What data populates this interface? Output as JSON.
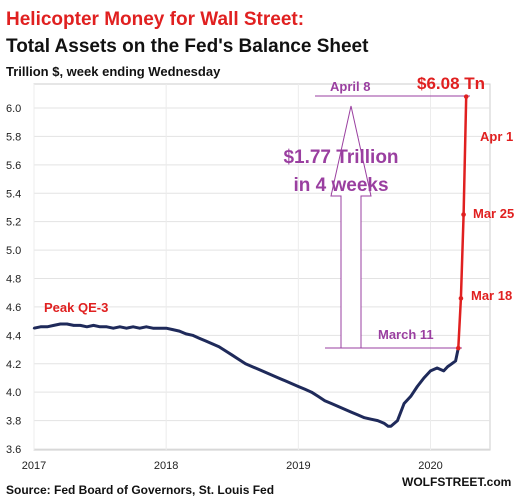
{
  "chart_data": {
    "type": "line",
    "title": "Helicopter Money for Wall Street:",
    "subtitle": "Total Assets on the Fed's Balance Sheet",
    "ylabel": "Trillion $, week ending Wednesday",
    "source": "Source: Fed Board of Governors, St. Louis Fed",
    "watermark": "WOLFSTREET.com",
    "x_ticks": [
      "2017",
      "2018",
      "2019",
      "2020"
    ],
    "y_ticks": [
      "3.6",
      "3.8",
      "4.0",
      "4.2",
      "4.4",
      "4.6",
      "4.8",
      "5.0",
      "5.2",
      "5.4",
      "5.6",
      "5.8",
      "6.0"
    ],
    "ylim": [
      3.6,
      6.0
    ],
    "xlim": [
      2017.0,
      2020.45
    ],
    "grid": true,
    "series": [
      {
        "color": "#1f2a5a",
        "x": [
          2017.0,
          2017.05,
          2017.1,
          2017.15,
          2017.2,
          2017.25,
          2017.3,
          2017.35,
          2017.4,
          2017.45,
          2017.5,
          2017.55,
          2017.6,
          2017.65,
          2017.7,
          2017.75,
          2017.8,
          2017.85,
          2017.9,
          2017.95,
          2018.0,
          2018.05,
          2018.1,
          2018.15,
          2018.2,
          2018.25,
          2018.3,
          2018.35,
          2018.4,
          2018.45,
          2018.5,
          2018.55,
          2018.6,
          2018.65,
          2018.7,
          2018.75,
          2018.8,
          2018.85,
          2018.9,
          2018.95,
          2019.0,
          2019.05,
          2019.1,
          2019.15,
          2019.2,
          2019.25,
          2019.3,
          2019.35,
          2019.4,
          2019.45,
          2019.5,
          2019.55,
          2019.6,
          2019.65,
          2019.68,
          2019.7,
          2019.75,
          2019.8,
          2019.85,
          2019.9,
          2019.95,
          2020.0,
          2020.05,
          2020.1,
          2020.13,
          2020.16,
          2020.19,
          2020.21
        ],
        "y": [
          4.45,
          4.46,
          4.46,
          4.47,
          4.48,
          4.48,
          4.47,
          4.47,
          4.46,
          4.47,
          4.46,
          4.46,
          4.45,
          4.46,
          4.45,
          4.46,
          4.45,
          4.46,
          4.45,
          4.45,
          4.45,
          4.44,
          4.43,
          4.41,
          4.4,
          4.38,
          4.36,
          4.34,
          4.32,
          4.29,
          4.26,
          4.23,
          4.2,
          4.18,
          4.16,
          4.14,
          4.12,
          4.1,
          4.08,
          4.06,
          4.04,
          4.02,
          4.0,
          3.97,
          3.94,
          3.92,
          3.9,
          3.88,
          3.86,
          3.84,
          3.82,
          3.81,
          3.8,
          3.78,
          3.76,
          3.76,
          3.8,
          3.92,
          3.97,
          4.04,
          4.1,
          4.15,
          4.17,
          4.15,
          4.18,
          4.2,
          4.22,
          4.31
        ]
      },
      {
        "color": "#e02020",
        "x": [
          2020.21,
          2020.23,
          2020.25,
          2020.27
        ],
        "y": [
          4.31,
          4.66,
          5.25,
          6.08
        ]
      }
    ],
    "annotations": {
      "peak": "Peak QE-3",
      "april8": "April 8",
      "value": "$6.08 Tn",
      "apr1": "Apr 1",
      "mar25": "Mar 25",
      "mar18": "Mar 18",
      "march11": "March 11",
      "growth_line1": "$1.77 Trillion",
      "growth_line2": "in 4 weeks"
    }
  }
}
